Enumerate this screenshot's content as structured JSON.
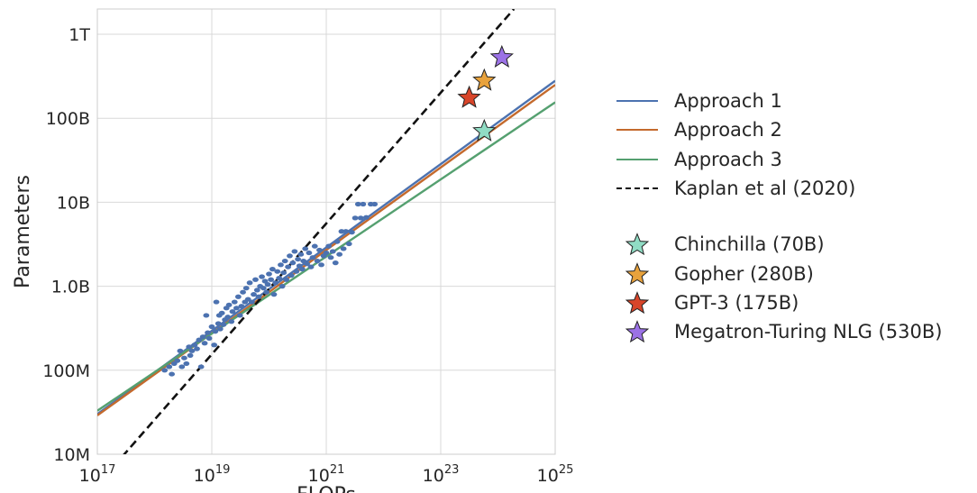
{
  "chart_data": {
    "type": "scatter",
    "xlabel": "FLOPs",
    "ylabel": "Parameters",
    "xscale": "log",
    "yscale": "log",
    "xlim": [
      1e+17,
      1e+25
    ],
    "ylim": [
      10000000.0,
      2000000000000.0
    ],
    "grid": true,
    "legend_position": "right, outside plot",
    "x_ticks": [
      {
        "value": 1e+17,
        "base": "10",
        "exp": "17"
      },
      {
        "value": 1e+19,
        "base": "10",
        "exp": "19"
      },
      {
        "value": 1e+21,
        "base": "10",
        "exp": "21"
      },
      {
        "value": 1e+23,
        "base": "10",
        "exp": "23"
      },
      {
        "value": 1e+25,
        "base": "10",
        "exp": "25"
      }
    ],
    "y_ticks": [
      {
        "value": 10000000.0,
        "label": "10M"
      },
      {
        "value": 100000000.0,
        "label": "100M"
      },
      {
        "value": 1000000000.0,
        "label": "1.0B"
      },
      {
        "value": 10000000000.0,
        "label": "10B"
      },
      {
        "value": 100000000000.0,
        "label": "100B"
      },
      {
        "value": 1000000000000.0,
        "label": "1T"
      }
    ],
    "series": [
      {
        "name": "Approach 1",
        "kind": "line",
        "color": "#4c72b0",
        "x": [
          1e+17,
          1e+25
        ],
        "y": [
          30000000.0,
          280000000000.0
        ]
      },
      {
        "name": "Approach 2",
        "kind": "line",
        "color": "#c46a2d",
        "x": [
          1e+17,
          1e+20,
          1e+21,
          1e+25
        ],
        "y": [
          29000000.0,
          850000000.0,
          2700000000.0,
          250000000000.0
        ]
      },
      {
        "name": "Approach 3",
        "kind": "line",
        "color": "#55a070",
        "x": [
          1e+17,
          1e+25
        ],
        "y": [
          33000000.0,
          155000000000.0
        ]
      },
      {
        "name": "Kaplan et al (2020)",
        "kind": "dashed-line",
        "color": "#111111",
        "x": [
          1e+17,
          1.9e+24
        ],
        "y": [
          4300000.0,
          2000000000000.0
        ]
      }
    ],
    "models": [
      {
        "name": "Chinchilla (70B)",
        "flops": 5.76e+23,
        "params": 70000000000.0,
        "color": "#90dcc4"
      },
      {
        "name": "Gopher (280B)",
        "flops": 5.76e+23,
        "params": 280000000000.0,
        "color": "#e8a23c"
      },
      {
        "name": "GPT-3 (175B)",
        "flops": 3.14e+23,
        "params": 175000000000.0,
        "color": "#d8452a"
      },
      {
        "name": "Megatron-Turing NLG (530B)",
        "flops": 1.17e+24,
        "params": 530000000000.0,
        "color": "#9b72e6"
      }
    ],
    "training_runs": {
      "color": "#4c72b0",
      "points": [
        [
          1.5e+18,
          100000000.0
        ],
        [
          1.8e+18,
          110000000.0
        ],
        [
          2e+18,
          90000000.0
        ],
        [
          2.2e+18,
          120000000.0
        ],
        [
          2.5e+18,
          130000000.0
        ],
        [
          2.8e+18,
          170000000.0
        ],
        [
          3e+18,
          110000000.0
        ],
        [
          3.3e+18,
          140000000.0
        ],
        [
          3.6e+18,
          120000000.0
        ],
        [
          4e+18,
          190000000.0
        ],
        [
          4.2e+18,
          150000000.0
        ],
        [
          4.5e+18,
          170000000.0
        ],
        [
          5e+18,
          200000000.0
        ],
        [
          5.5e+18,
          180000000.0
        ],
        [
          6e+18,
          230000000.0
        ],
        [
          6.5e+18,
          110000000.0
        ],
        [
          7e+18,
          250000000.0
        ],
        [
          7.5e+18,
          210000000.0
        ],
        [
          8e+18,
          450000000.0
        ],
        [
          8.5e+18,
          280000000.0
        ],
        [
          9e+18,
          240000000.0
        ],
        [
          1e+19,
          330000000.0
        ],
        [
          1.1e+19,
          200000000.0
        ],
        [
          1.15e+19,
          290000000.0
        ],
        [
          1.2e+19,
          650000000.0
        ],
        [
          1.3e+19,
          360000000.0
        ],
        [
          1.35e+19,
          450000000.0
        ],
        [
          1.4e+19,
          310000000.0
        ],
        [
          1.5e+19,
          480000000.0
        ],
        [
          1.6e+19,
          350000000.0
        ],
        [
          1.7e+19,
          400000000.0
        ],
        [
          1.8e+19,
          550000000.0
        ],
        [
          1.9e+19,
          430000000.0
        ],
        [
          2e+19,
          600000000.0
        ],
        [
          2.2e+19,
          380000000.0
        ],
        [
          2.3e+19,
          500000000.0
        ],
        [
          2.5e+19,
          650000000.0
        ],
        [
          2.7e+19,
          550000000.0
        ],
        [
          2.9e+19,
          750000000.0
        ],
        [
          3.1e+19,
          450000000.0
        ],
        [
          3.3e+19,
          580000000.0
        ],
        [
          3.5e+19,
          850000000.0
        ],
        [
          3.8e+19,
          650000000.0
        ],
        [
          4e+19,
          950000000.0
        ],
        [
          4.3e+19,
          700000000.0
        ],
        [
          4.6e+19,
          1100000000.0
        ],
        [
          5e+19,
          650000000.0
        ],
        [
          5.4e+19,
          800000000.0
        ],
        [
          5.8e+19,
          1200000000.0
        ],
        [
          6.2e+19,
          900000000.0
        ],
        [
          6.6e+19,
          750000000.0
        ],
        [
          7e+19,
          1000000000.0
        ],
        [
          7.5e+19,
          1300000000.0
        ],
        [
          8e+19,
          950000000.0
        ],
        [
          8.5e+19,
          1150000000.0
        ],
        [
          9e+19,
          850000000.0
        ],
        [
          9.5e+19,
          1050000000.0
        ],
        [
          1e+20,
          1400000000.0
        ],
        [
          1.08e+20,
          1200000000.0
        ],
        [
          1.15e+20,
          1600000000.0
        ],
        [
          1.22e+20,
          800000000.0
        ],
        [
          1.3e+20,
          1100000000.0
        ],
        [
          1.4e+20,
          1500000000.0
        ],
        [
          1.5e+20,
          1250000000.0
        ],
        [
          1.6e+20,
          1800000000.0
        ],
        [
          1.7e+20,
          1000000000.0
        ],
        [
          1.8e+20,
          1450000000.0
        ],
        [
          1.9e+20,
          2000000000.0
        ],
        [
          2e+20,
          1200000000.0
        ],
        [
          2.15e+20,
          1700000000.0
        ],
        [
          2.3e+20,
          2300000000.0
        ],
        [
          2.45e+20,
          1350000000.0
        ],
        [
          2.6e+20,
          1900000000.0
        ],
        [
          2.8e+20,
          2600000000.0
        ],
        [
          3e+20,
          1500000000.0
        ],
        [
          3.2e+20,
          2100000000.0
        ],
        [
          3.4e+20,
          1750000000.0
        ],
        [
          3.6e+20,
          2400000000.0
        ],
        [
          3.8e+20,
          1600000000.0
        ],
        [
          4e+20,
          2000000000.0
        ],
        [
          4.3e+20,
          2800000000.0
        ],
        [
          4.6e+20,
          1850000000.0
        ],
        [
          5e+20,
          2500000000.0
        ],
        [
          5.4e+20,
          1700000000.0
        ],
        [
          5.8e+20,
          2200000000.0
        ],
        [
          6.3e+20,
          3000000000.0
        ],
        [
          7e+20,
          2000000000.0
        ],
        [
          7.6e+20,
          2700000000.0
        ],
        [
          8.2e+20,
          1800000000.0
        ],
        [
          9e+20,
          2300000000.0
        ],
        [
          1e+21,
          2500000000.0
        ],
        [
          1.1e+21,
          3000000000.0
        ],
        [
          1.2e+21,
          2200000000.0
        ],
        [
          1.3e+21,
          2600000000.0
        ],
        [
          1.45e+21,
          1900000000.0
        ],
        [
          1.55e+21,
          3400000000.0
        ],
        [
          1.7e+21,
          2400000000.0
        ],
        [
          1.85e+21,
          4500000000.0
        ],
        [
          2e+21,
          2800000000.0
        ],
        [
          2.2e+21,
          4500000000.0
        ],
        [
          2.5e+21,
          3200000000.0
        ],
        [
          2.8e+21,
          4400000000.0
        ],
        [
          3.2e+21,
          6500000000.0
        ],
        [
          3.6e+21,
          9500000000.0
        ],
        [
          4e+21,
          6500000000.0
        ],
        [
          4.4e+21,
          9500000000.0
        ],
        [
          5e+21,
          6600000000.0
        ],
        [
          6e+21,
          9500000000.0
        ],
        [
          7e+21,
          9500000000.0
        ]
      ]
    }
  }
}
